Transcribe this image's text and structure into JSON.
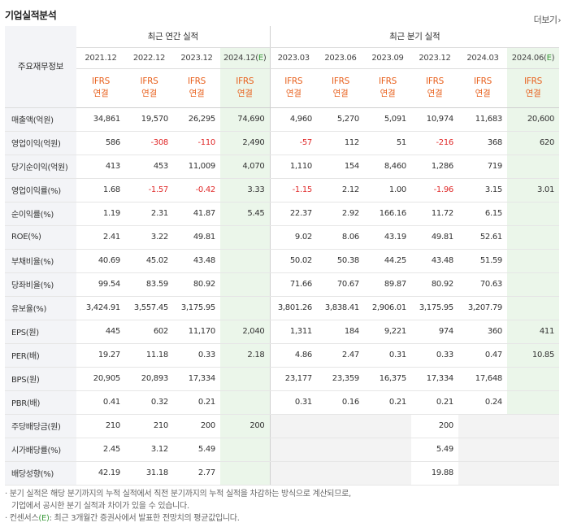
{
  "section_title": "기업실적분석",
  "more_label": "더보기",
  "corner_label": "주요재무정보",
  "group_annual": "최근 연간 실적",
  "group_quarter": "최근 분기 실적",
  "annual_periods": [
    "2021.12",
    "2022.12",
    "2023.12",
    "2024.12(E)"
  ],
  "quarter_periods": [
    "2023.03",
    "2023.06",
    "2023.09",
    "2023.12",
    "2024.03",
    "2024.06(E)"
  ],
  "ifrs_top": "IFRS",
  "ifrs_bottom": "연결",
  "rows": [
    {
      "label": "매출액(억원)",
      "annual": [
        "34,861",
        "19,570",
        "26,295",
        "74,690"
      ],
      "quarter": [
        "4,960",
        "5,270",
        "5,091",
        "10,974",
        "11,683",
        "20,600"
      ]
    },
    {
      "label": "영업이익(억원)",
      "annual": [
        "586",
        "-308",
        "-110",
        "2,490"
      ],
      "quarter": [
        "-57",
        "112",
        "51",
        "-216",
        "368",
        "620"
      ]
    },
    {
      "label": "당기순이익(억원)",
      "annual": [
        "413",
        "453",
        "11,009",
        "4,070"
      ],
      "quarter": [
        "1,110",
        "154",
        "8,460",
        "1,286",
        "719",
        ""
      ]
    },
    {
      "label": "영업이익률(%)",
      "annual": [
        "1.68",
        "-1.57",
        "-0.42",
        "3.33"
      ],
      "quarter": [
        "-1.15",
        "2.12",
        "1.00",
        "-1.96",
        "3.15",
        "3.01"
      ]
    },
    {
      "label": "순이익률(%)",
      "annual": [
        "1.19",
        "2.31",
        "41.87",
        "5.45"
      ],
      "quarter": [
        "22.37",
        "2.92",
        "166.16",
        "11.72",
        "6.15",
        ""
      ]
    },
    {
      "label": "ROE(%)",
      "annual": [
        "2.41",
        "3.22",
        "49.81",
        ""
      ],
      "quarter": [
        "9.02",
        "8.06",
        "43.19",
        "49.81",
        "52.61",
        ""
      ]
    },
    {
      "label": "부채비율(%)",
      "annual": [
        "40.69",
        "45.02",
        "43.48",
        ""
      ],
      "quarter": [
        "50.02",
        "50.38",
        "44.25",
        "43.48",
        "51.59",
        ""
      ]
    },
    {
      "label": "당좌비율(%)",
      "annual": [
        "99.54",
        "83.59",
        "80.92",
        ""
      ],
      "quarter": [
        "71.66",
        "70.67",
        "89.87",
        "80.92",
        "70.63",
        ""
      ]
    },
    {
      "label": "유보율(%)",
      "annual": [
        "3,424.91",
        "3,557.45",
        "3,175.95",
        ""
      ],
      "quarter": [
        "3,801.26",
        "3,838.41",
        "2,906.01",
        "3,175.95",
        "3,207.79",
        ""
      ]
    },
    {
      "label": "EPS(원)",
      "annual": [
        "445",
        "602",
        "11,170",
        "2,040"
      ],
      "quarter": [
        "1,311",
        "184",
        "9,221",
        "974",
        "360",
        "411"
      ]
    },
    {
      "label": "PER(배)",
      "annual": [
        "19.27",
        "11.18",
        "0.33",
        "2.18"
      ],
      "quarter": [
        "4.86",
        "2.47",
        "0.31",
        "0.33",
        "0.47",
        "10.85"
      ]
    },
    {
      "label": "BPS(원)",
      "annual": [
        "20,905",
        "20,893",
        "17,334",
        ""
      ],
      "quarter": [
        "23,177",
        "23,359",
        "16,375",
        "17,334",
        "17,648",
        ""
      ]
    },
    {
      "label": "PBR(배)",
      "annual": [
        "0.41",
        "0.32",
        "0.21",
        ""
      ],
      "quarter": [
        "0.31",
        "0.16",
        "0.21",
        "0.21",
        "0.24",
        ""
      ]
    },
    {
      "label": "주당배당금(원)",
      "annual": [
        "210",
        "210",
        "200",
        "200"
      ],
      "quarter": [
        "",
        "",
        "",
        "200",
        "",
        ""
      ]
    },
    {
      "label": "시가배당률(%)",
      "annual": [
        "2.45",
        "3.12",
        "5.49",
        ""
      ],
      "quarter": [
        "",
        "",
        "",
        "5.49",
        "",
        ""
      ]
    },
    {
      "label": "배당성향(%)",
      "annual": [
        "42.19",
        "31.18",
        "2.77",
        ""
      ],
      "quarter": [
        "",
        "",
        "",
        "19.88",
        "",
        ""
      ]
    }
  ],
  "notes": {
    "line1": "· 분기 실적은 해당 분기까지의 누적 실적에서 직전 분기까지의 누적 실적을 차감하는 방식으로 계산되므로,",
    "line2": "  기업에서 공시한 분기 실적과 차이가 있을 수 있습니다.",
    "line3_pre": "· 컨센서스",
    "line3_em": "(E)",
    "line3_post": ": 최근 3개월간 증권사에서 발표한 전망치의 평균값입니다."
  },
  "colors": {
    "negative": "#e02a2a",
    "ifrs": "#e8611e",
    "estimate_bg": "#ebf6ea",
    "estimate_mark": "#3a9a3a",
    "label_bg": "#f3f4f7"
  }
}
